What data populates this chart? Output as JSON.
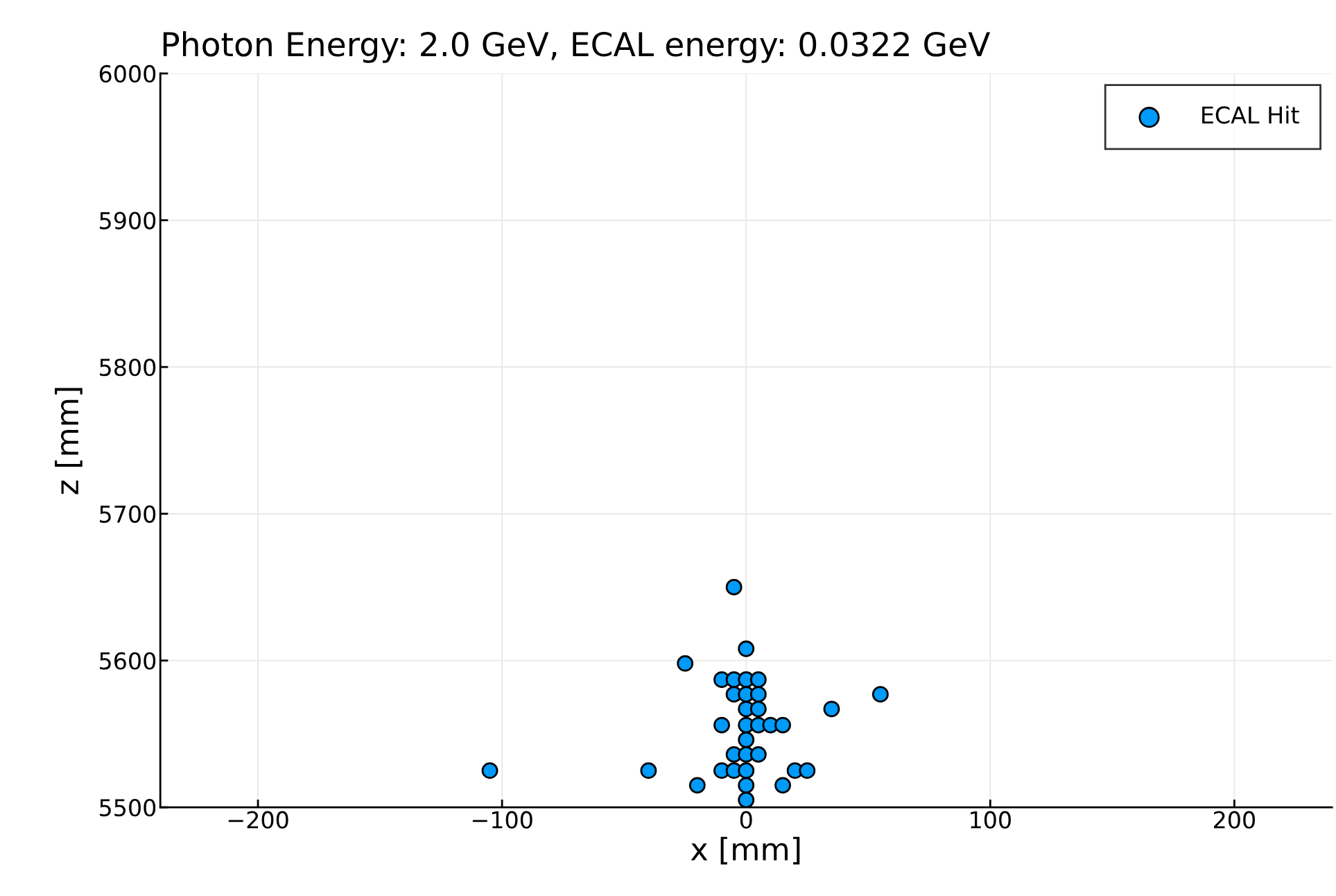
{
  "chart_data": {
    "type": "scatter",
    "title": "Photon Energy: 2.0 GeV, ECAL energy: 0.0322 GeV",
    "xlabel": "x [mm]",
    "ylabel": "z [mm]",
    "series": [
      {
        "name": "ECAL Hit",
        "color": "#009af9",
        "x": [
          -105,
          -40,
          -20,
          -10,
          -5,
          0,
          0,
          0,
          20,
          25,
          15,
          -5,
          0,
          5,
          0,
          -10,
          0,
          5,
          10,
          15,
          0,
          5,
          35,
          -5,
          0,
          5,
          55,
          -10,
          -5,
          0,
          5,
          -25,
          0,
          -5
        ],
        "values": [
          5525,
          5525,
          5515,
          5525,
          5525,
          5525,
          5515,
          5505,
          5525,
          5525,
          5515,
          5536,
          5536,
          5536,
          5546,
          5556,
          5556,
          5556,
          5556,
          5556,
          5567,
          5567,
          5567,
          5577,
          5577,
          5577,
          5577,
          5587,
          5587,
          5587,
          5587,
          5598,
          5608,
          5650
        ]
      }
    ],
    "xlim": [
      -240,
      240
    ],
    "xticks": [
      {
        "value": -200,
        "label": "−200"
      },
      {
        "value": -100,
        "label": "−100"
      },
      0,
      100,
      200
    ],
    "ylim": [
      5500,
      6000
    ],
    "yticks": [
      5500,
      5600,
      5700,
      5800,
      5900,
      6000
    ],
    "grid": true,
    "legend": "top right",
    "marker": "circle"
  }
}
